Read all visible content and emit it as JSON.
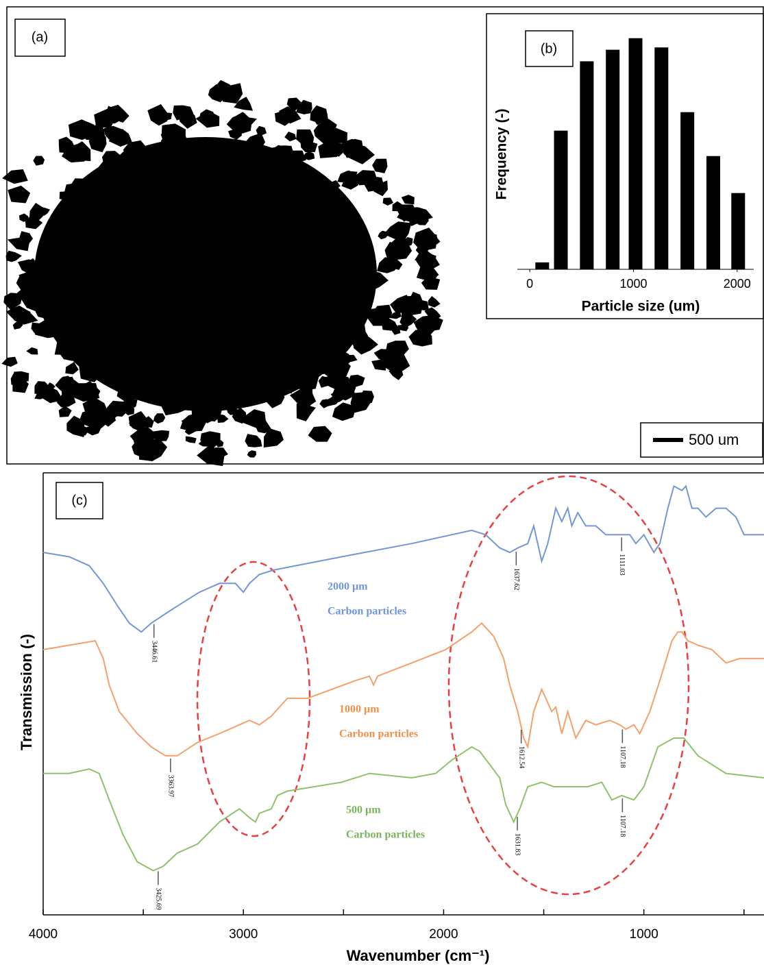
{
  "image": {
    "panel_label": "(a)",
    "scale_bar": "500 um"
  },
  "chart_data": [
    {
      "type": "bar",
      "panel_label": "(b)",
      "x_label": "Particle size (um)",
      "y_label": "Frequency (-)",
      "x": [
        120,
        300,
        550,
        800,
        1020,
        1270,
        1520,
        1770,
        2010
      ],
      "values": [
        3,
        60,
        90,
        95,
        100,
        96,
        68,
        49,
        33
      ],
      "color": "#000000",
      "xlim": [
        -120,
        2160
      ],
      "xticks": [
        0,
        1000,
        2000
      ],
      "ylim": [
        0,
        110
      ]
    },
    {
      "type": "line",
      "panel_label": "(c)",
      "x_label": "Wavenumber (cm⁻¹)",
      "y_label": "Transmission (-)",
      "xlim": [
        4000,
        400
      ],
      "xticks": [
        4000,
        3000,
        2000,
        1000
      ],
      "xminorticks": [
        3500,
        2500,
        1500,
        500
      ],
      "ylim": [
        0,
        100
      ],
      "series": [
        {
          "name": "2000 µm",
          "description": "Carbon particles",
          "color": "#7396d6",
          "label_color": "#6f96e0",
          "x": [
            4000,
            3870,
            3770,
            3700,
            3630,
            3570,
            3510,
            3460,
            3360,
            3220,
            3120,
            3040,
            3000,
            2970,
            2920,
            2850,
            2510,
            2160,
            1860,
            1790,
            1720,
            1670,
            1630,
            1580,
            1550,
            1510,
            1480,
            1440,
            1410,
            1380,
            1360,
            1330,
            1290,
            1240,
            1190,
            1120,
            1070,
            1040,
            1000,
            950,
            920,
            880,
            850,
            810,
            790,
            760,
            730,
            690,
            640,
            590,
            540,
            500,
            460,
            400
          ],
          "values": [
            82,
            81,
            79,
            75,
            70,
            66,
            64,
            66,
            69,
            73,
            75,
            75,
            73,
            75,
            77,
            78,
            81,
            84,
            87,
            86,
            83,
            82,
            83,
            84,
            88,
            80,
            84,
            92,
            89,
            92,
            88,
            91,
            88,
            88,
            86,
            86,
            86,
            84,
            86,
            82,
            84,
            92,
            97,
            96,
            97,
            92,
            92,
            90,
            92,
            92,
            90,
            86,
            86,
            86
          ],
          "peaks": [
            3446.61,
            1637.62,
            1111.03
          ]
        },
        {
          "name": "1000 µm",
          "description": "Carbon particles",
          "color": "#f4a06a",
          "label_color": "#f0904a",
          "x": [
            4000,
            3870,
            3740,
            3700,
            3670,
            3620,
            3530,
            3460,
            3390,
            3330,
            3230,
            3120,
            3020,
            2970,
            2920,
            2860,
            2780,
            2680,
            2440,
            2370,
            2350,
            2330,
            2160,
            1990,
            1860,
            1810,
            1750,
            1700,
            1670,
            1630,
            1600,
            1580,
            1550,
            1510,
            1490,
            1460,
            1440,
            1410,
            1380,
            1340,
            1290,
            1240,
            1170,
            1120,
            1090,
            1050,
            1020,
            970,
            920,
            860,
            830,
            810,
            780,
            730,
            660,
            590,
            520,
            460,
            400
          ],
          "values": [
            60,
            61,
            62,
            58,
            52,
            46,
            41,
            38,
            36,
            36,
            39,
            41,
            43,
            44,
            43,
            45,
            49,
            49,
            53,
            54,
            52,
            54,
            57,
            60,
            64,
            66,
            63,
            58,
            52,
            46,
            40,
            38,
            46,
            51,
            49,
            46,
            47,
            41,
            46,
            40,
            44,
            43,
            44,
            43,
            42,
            43,
            41,
            46,
            53,
            62,
            64,
            64,
            62,
            61,
            60,
            57,
            58,
            58,
            58
          ],
          "peaks": [
            3363.97,
            1612.54,
            1107.18
          ]
        },
        {
          "name": "500 µm",
          "description": "Carbon particles",
          "color": "#8cc36a",
          "label_color": "#7ab55a",
          "x": [
            4000,
            3870,
            3770,
            3720,
            3670,
            3600,
            3530,
            3450,
            3400,
            3330,
            3230,
            3120,
            3020,
            2970,
            2940,
            2920,
            2860,
            2830,
            2780,
            2510,
            2370,
            2160,
            2040,
            1960,
            1860,
            1820,
            1770,
            1720,
            1690,
            1650,
            1620,
            1580,
            1510,
            1450,
            1380,
            1280,
            1210,
            1160,
            1110,
            1050,
            1000,
            930,
            850,
            800,
            730,
            590,
            400
          ],
          "values": [
            32,
            32,
            33,
            32,
            26,
            18,
            12,
            10,
            11,
            14,
            16,
            21,
            24,
            22,
            21,
            23,
            24,
            27,
            28,
            30,
            32,
            31,
            32,
            35,
            38,
            37,
            34,
            31,
            25,
            21,
            24,
            29,
            30,
            29,
            29,
            29,
            30,
            26,
            27,
            26,
            29,
            38,
            40,
            40,
            36,
            32,
            31
          ],
          "peaks": [
            3425.69,
            1631.83,
            1107.18
          ]
        }
      ]
    }
  ]
}
